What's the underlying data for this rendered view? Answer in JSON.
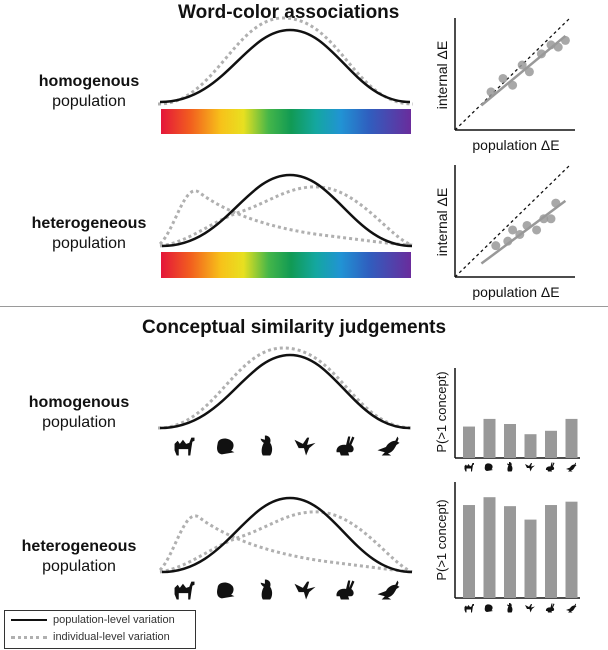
{
  "sections": {
    "top_title": "Word-color associations",
    "bottom_title": "Conceptual similarity judgements"
  },
  "rows": {
    "color_homo": {
      "bold": "homogenous",
      "normal": "population"
    },
    "color_hetero": {
      "bold": "heterogeneous",
      "normal": "population"
    },
    "concept_homo": {
      "bold": "homogenous",
      "normal": "population"
    },
    "concept_hetero": {
      "bold": "heterogeneous",
      "normal": "population"
    }
  },
  "scatter_axes": {
    "x_label": "population ΔE",
    "y_label": "internal ΔE"
  },
  "bar_axes": {
    "y_label": "P(>1 concept)"
  },
  "legend": {
    "population": "population-level variation",
    "individual": "individual-level variation"
  },
  "icons": [
    "camel-icon",
    "chameleon-icon",
    "penguin-icon",
    "hummingbird-icon",
    "rabbit-icon",
    "kangaroo-icon"
  ],
  "colors": {
    "curve": "#111111",
    "dotted": "#b0b0b0",
    "marks": "#999999"
  },
  "chart_data": [
    {
      "type": "scatter",
      "panel": "color-homogenous",
      "x": [
        1.5,
        2.0,
        2.4,
        2.8,
        3.1,
        3.6,
        4.0,
        4.3,
        4.6
      ],
      "y": [
        1.7,
        2.3,
        2.0,
        2.9,
        2.6,
        3.4,
        3.8,
        3.7,
        4.0
      ],
      "fit": {
        "x": [
          1.1,
          4.6
        ],
        "y": [
          1.1,
          4.2
        ]
      },
      "diagonal": true,
      "xlim": [
        0,
        5
      ],
      "ylim": [
        0,
        5
      ],
      "xlabel": "population ΔE",
      "ylabel": "internal ΔE"
    },
    {
      "type": "scatter",
      "panel": "color-heterogeneous",
      "x": [
        1.7,
        2.2,
        2.4,
        2.7,
        3.0,
        3.4,
        3.7,
        4.0,
        4.2
      ],
      "y": [
        1.4,
        1.6,
        2.1,
        1.9,
        2.3,
        2.1,
        2.6,
        2.6,
        3.3
      ],
      "fit": {
        "x": [
          1.1,
          4.6
        ],
        "y": [
          0.6,
          3.4
        ]
      },
      "diagonal": true,
      "xlim": [
        0,
        5
      ],
      "ylim": [
        0,
        5
      ],
      "xlabel": "population ΔE",
      "ylabel": "internal ΔE"
    },
    {
      "type": "bar",
      "panel": "concept-homogenous",
      "values": [
        0.37,
        0.46,
        0.4,
        0.28,
        0.32,
        0.46
      ],
      "ylim": [
        0,
        1
      ],
      "ylabel": "P(>1 concept)"
    },
    {
      "type": "bar",
      "panel": "concept-heterogeneous",
      "values": [
        0.83,
        0.9,
        0.82,
        0.7,
        0.83,
        0.86
      ],
      "ylim": [
        0,
        1
      ],
      "ylabel": "P(>1 concept)"
    }
  ]
}
